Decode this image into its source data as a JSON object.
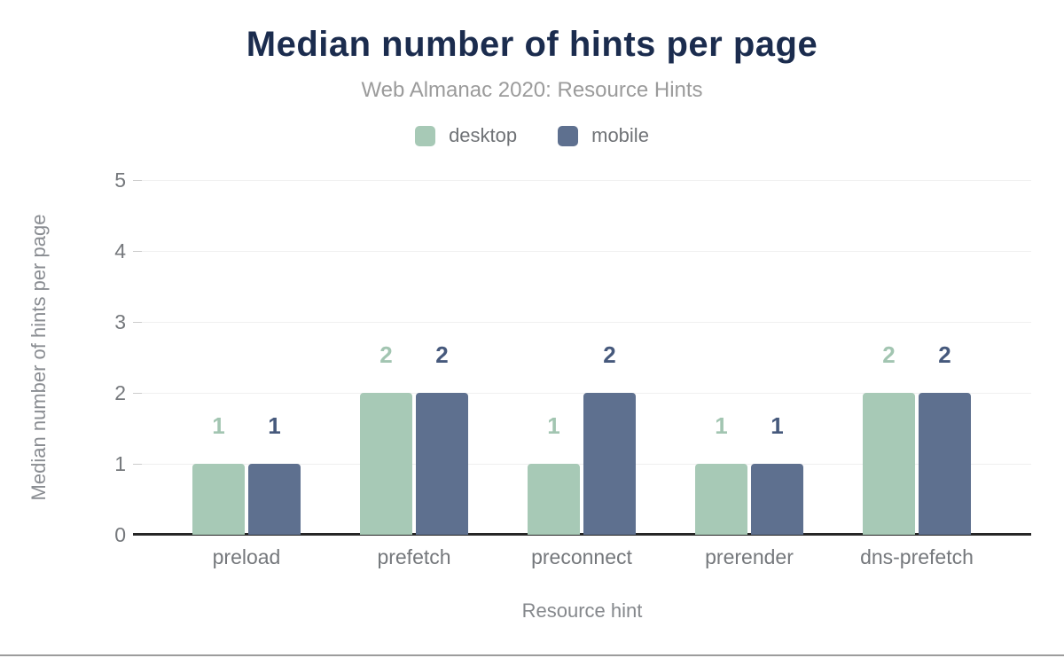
{
  "chart_data": {
    "type": "bar",
    "title": "Median number of hints per page",
    "subtitle": "Web Almanac 2020: Resource Hints",
    "xlabel": "Resource hint",
    "ylabel": "Median number of hints per page",
    "categories": [
      "preload",
      "prefetch",
      "preconnect",
      "prerender",
      "dns-prefetch"
    ],
    "series": [
      {
        "name": "desktop",
        "color": "#a7c9b6",
        "label_color": "#a2c5b1",
        "values": [
          1,
          2,
          1,
          1,
          2
        ]
      },
      {
        "name": "mobile",
        "color": "#5e708f",
        "label_color": "#46597c",
        "values": [
          1,
          2,
          2,
          1,
          2
        ]
      }
    ],
    "ylim": [
      0,
      5
    ],
    "yticks": [
      0,
      1,
      2,
      3,
      4,
      5
    ],
    "grid": true,
    "legend_position": "top",
    "value_labels": true
  },
  "colors": {
    "title": "#1b2c4e",
    "subtitle": "#9b9b9b",
    "tick_label": "#75787c",
    "axis_title": "#8a8d92",
    "legend_text": "#6f7276",
    "gridline": "#f0f0f0",
    "tick_mark": "#cccccc",
    "axis_line": "#262626",
    "bottom_rule": "#9c9c9c"
  }
}
